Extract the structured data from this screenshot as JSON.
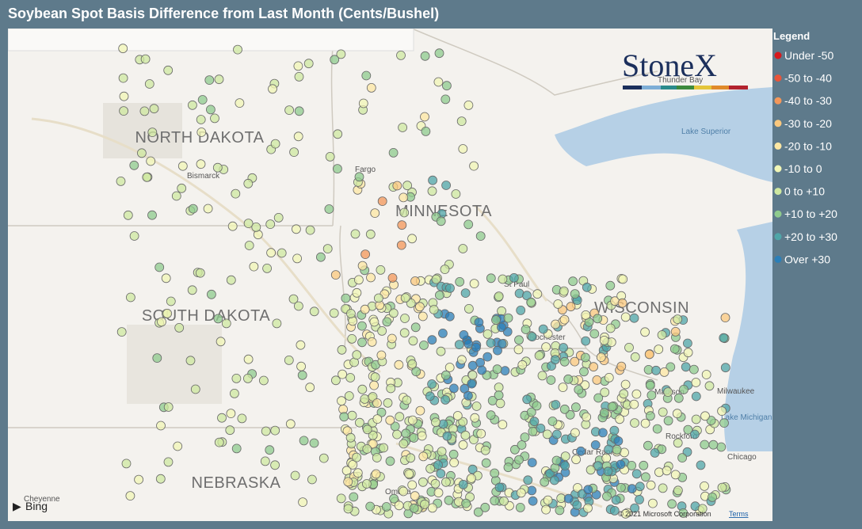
{
  "header": {
    "title": "Soybean Spot Basis Difference from Last Month (Cents/Bushel)"
  },
  "legend": {
    "title": "Legend",
    "items": [
      {
        "label": "Under -50",
        "color": "#d7191c"
      },
      {
        "label": "-50 to -40",
        "color": "#e8553a"
      },
      {
        "label": "-40 to -30",
        "color": "#f4975a"
      },
      {
        "label": "-30 to -20",
        "color": "#fbc87e"
      },
      {
        "label": "-20 to -10",
        "color": "#fde7a3"
      },
      {
        "label": "-10 to 0",
        "color": "#f1f6b6"
      },
      {
        "label": "0 to +10",
        "color": "#cfe8a0"
      },
      {
        "label": "+10 to +20",
        "color": "#8fcb8d"
      },
      {
        "label": "+20 to +30",
        "color": "#4fa6a8"
      },
      {
        "label": "Over +30",
        "color": "#2b7fb8"
      }
    ]
  },
  "map": {
    "labels": [
      "NORTH DAKOTA",
      "SOUTH DAKOTA",
      "MINNESOTA",
      "WISCONSIN",
      "NEBRASKA"
    ],
    "places": [
      "Bismarck",
      "Fargo",
      "St Paul",
      "Rochester",
      "Madison",
      "Milwaukee",
      "Lake Michigan",
      "Lake Superior",
      "Thunder Bay",
      "Rockford",
      "Cedar Rapids",
      "Chicago",
      "Omaha",
      "Cheyenne"
    ]
  },
  "logo": "StoneX",
  "attribution": {
    "provider": "Bing",
    "copyright": "© 2021 Microsoft Corporation",
    "terms": "Terms"
  }
}
